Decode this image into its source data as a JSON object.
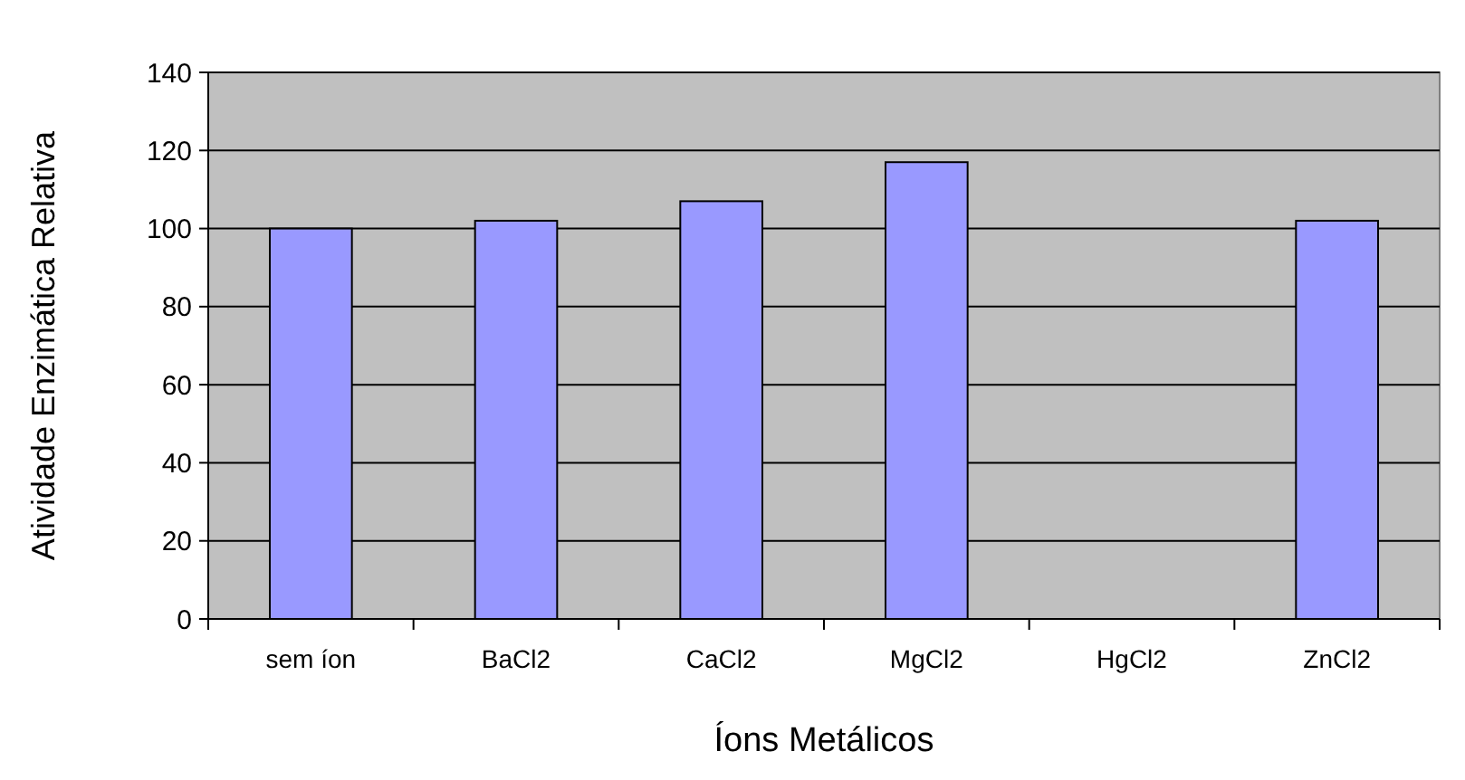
{
  "chart_data": {
    "type": "bar",
    "xlabel": "Íons Metálicos",
    "ylabel": "Atividade Enzimática Relativa",
    "categories": [
      "sem íon",
      "BaCl2",
      "CaCl2",
      "MgCl2",
      "HgCl2",
      "ZnCl2"
    ],
    "values": [
      100,
      102,
      107,
      117,
      0,
      102
    ],
    "color": "#9999ff",
    "ylim": [
      0,
      140
    ],
    "yticks": [
      0,
      20,
      40,
      60,
      80,
      100,
      120,
      140
    ],
    "grid": "y"
  }
}
